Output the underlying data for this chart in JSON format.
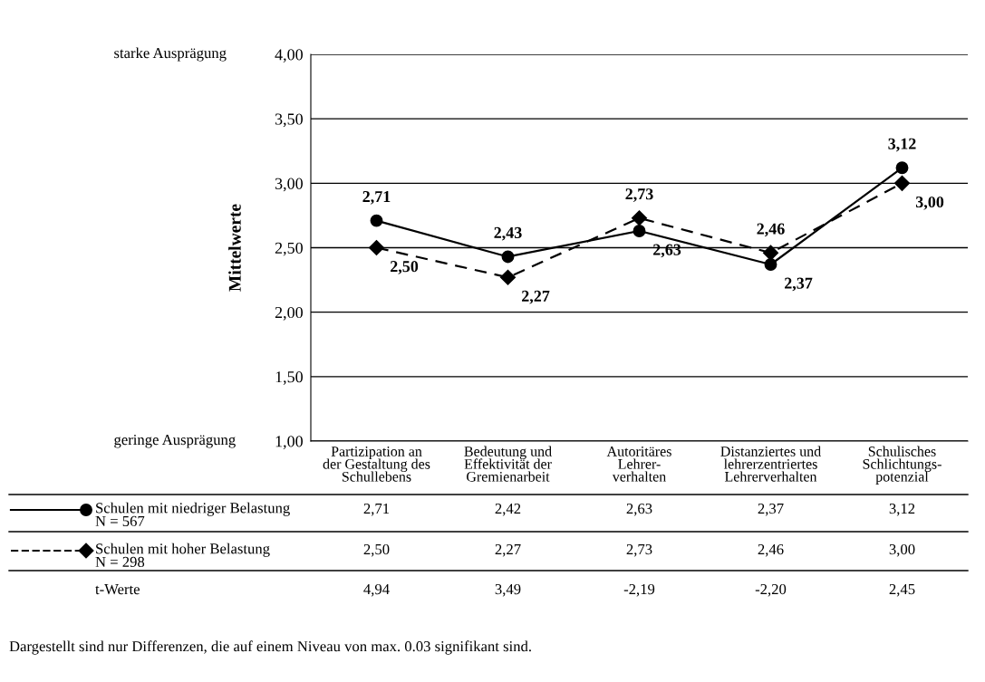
{
  "chart_data": {
    "type": "line",
    "ylabel": "Mittelwerte",
    "categories": [
      "Partizipation an\nder Gestaltung des\nSchullebens",
      "Bedeutung und\nEffektivität der\nGremienarbeit",
      "Autoritäres\nLehrer-\nverhalten",
      "Distanziertes und\nlehrerzentriertes\nLehrerverhalten",
      "Schulisches\nSchlichtungs-\npotenzial"
    ],
    "series": [
      {
        "name": "Schulen mit niedriger Belastung\nN = 567",
        "color": "#000000",
        "marker": "circle",
        "line_style": "solid",
        "values": [
          2.71,
          2.43,
          2.63,
          2.37,
          3.12
        ],
        "value_labels": [
          "2,71",
          "2,43",
          "2,63",
          "2,37",
          "3,12"
        ]
      },
      {
        "name": "Schulen mit hoher Belastung\nN = 298",
        "color": "#000000",
        "marker": "diamond",
        "line_style": "dashed",
        "values": [
          2.5,
          2.27,
          2.73,
          2.46,
          3.0
        ],
        "value_labels": [
          "2,50",
          "2,27",
          "2,73",
          "2,46",
          "3,00"
        ]
      }
    ],
    "ylim": [
      1.0,
      4.0
    ],
    "yticks": [
      {
        "value": 1.0,
        "label": "1,00"
      },
      {
        "value": 1.5,
        "label": "1,50"
      },
      {
        "value": 2.0,
        "label": "2,00"
      },
      {
        "value": 2.5,
        "label": "2,50"
      },
      {
        "value": 3.0,
        "label": "3,00"
      },
      {
        "value": 3.5,
        "label": "3,50"
      },
      {
        "value": 4.0,
        "label": "4,00"
      }
    ],
    "grid": "y",
    "legend": "bottom",
    "annotations": [
      "starke Ausprägung",
      "geringe Ausprägung",
      "t-Werte",
      "4,94",
      "3,49",
      "-2,19",
      "-2,20",
      "2,45",
      "Dargestellt sind nur Differenzen, die auf einem Niveau von max. 0.03 signifikant sind.",
      "2,71",
      "2,42",
      "2,63",
      "2,37",
      "3,12",
      "2,50",
      "2,27",
      "2,73",
      "2,46",
      "3,00"
    ]
  }
}
